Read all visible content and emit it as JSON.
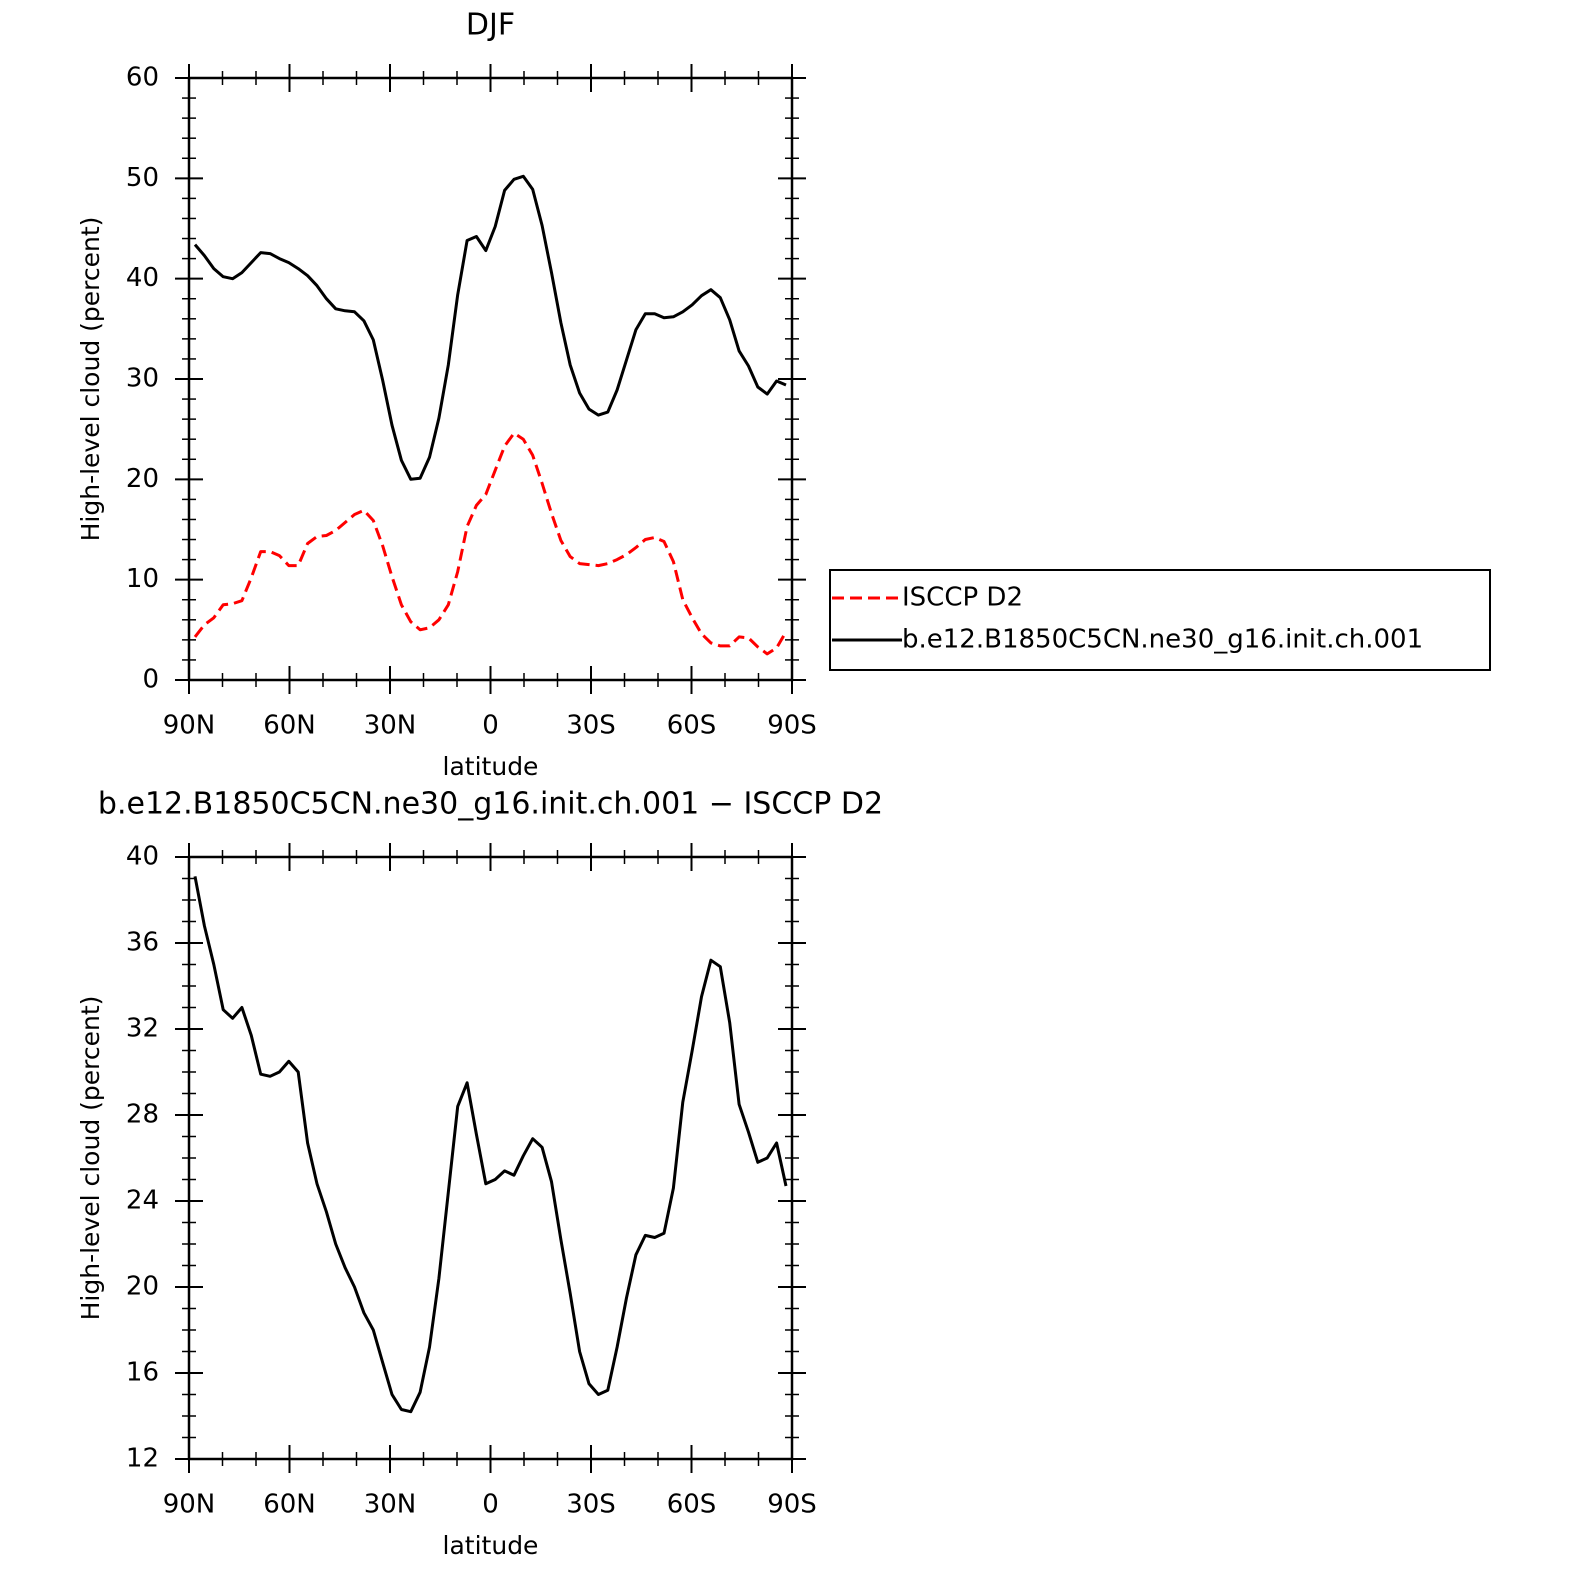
{
  "chart_data": [
    {
      "type": "line",
      "title": "DJF",
      "xlabel": "latitude",
      "ylabel": "High-level cloud (percent)",
      "x": [
        88.2,
        85.4,
        82.6,
        79.8,
        77,
        74.2,
        71.4,
        68.6,
        65.8,
        63,
        60.2,
        57.4,
        54.6,
        51.8,
        49,
        46.2,
        43.4,
        40.6,
        37.8,
        35,
        32.2,
        29.4,
        26.6,
        23.8,
        21,
        18.2,
        15.4,
        12.6,
        9.8,
        7,
        4.2,
        1.4,
        -1.4,
        -4.2,
        -7,
        -9.8,
        -12.6,
        -15.4,
        -18.2,
        -21,
        -23.8,
        -26.6,
        -29.4,
        -32.2,
        -35,
        -37.8,
        -40.6,
        -43.4,
        -46.2,
        -49,
        -51.8,
        -54.6,
        -57.4,
        -60.2,
        -63,
        -65.8,
        -68.6,
        -71.4,
        -74.2,
        -77,
        -79.8,
        -82.6,
        -85.4,
        -88.2
      ],
      "series": [
        {
          "name": "ISCCP D2",
          "color": "#ff0000",
          "dashed": true,
          "values": [
            4.3,
            5.5,
            6.2,
            7.5,
            7.6,
            7.9,
            10.2,
            12.8,
            12.8,
            12.4,
            11.4,
            11.4,
            13.6,
            14.3,
            14.4,
            14.9,
            15.7,
            16.5,
            16.9,
            15.9,
            13.4,
            10.3,
            7.5,
            5.8,
            5.0,
            5.2,
            6.0,
            7.5,
            10.8,
            15.3,
            17.4,
            18.5,
            20.9,
            23.3,
            24.6,
            24.0,
            22.4,
            19.6,
            16.6,
            13.9,
            12.3,
            11.6,
            11.5,
            11.4,
            11.6,
            12.0,
            12.5,
            13.2,
            14.0,
            14.2,
            13.8,
            11.8,
            8.0,
            6.2,
            4.6,
            3.7,
            3.4,
            3.4,
            4.3,
            4.2,
            3.3,
            2.6,
            3.2,
            4.8
          ]
        },
        {
          "name": "b.e12.B1850C5CN.ne30_g16.init.ch.001",
          "color": "#000000",
          "dashed": false,
          "values": [
            43.4,
            42.3,
            41.0,
            40.2,
            40.0,
            40.6,
            41.6,
            42.6,
            42.5,
            42.0,
            41.6,
            41.0,
            40.3,
            39.3,
            38.0,
            37.0,
            36.8,
            36.7,
            35.8,
            33.9,
            29.9,
            25.4,
            21.9,
            20.0,
            20.1,
            22.2,
            26.1,
            31.4,
            38.4,
            43.8,
            44.2,
            42.8,
            45.2,
            48.8,
            49.9,
            50.2,
            48.9,
            45.3,
            40.6,
            35.6,
            31.4,
            28.6,
            27.0,
            26.4,
            26.7,
            28.9,
            31.9,
            34.9,
            36.5,
            36.5,
            36.1,
            36.2,
            36.7,
            37.4,
            38.3,
            38.9,
            38.1,
            35.9,
            32.8,
            31.3,
            29.2,
            28.5,
            29.8,
            29.4
          ]
        }
      ],
      "xlim": [
        90,
        -90
      ],
      "xticks": [
        {
          "value": 90,
          "label": "90N"
        },
        {
          "value": 60,
          "label": "60N"
        },
        {
          "value": 30,
          "label": "30N"
        },
        0,
        {
          "value": -30,
          "label": "30S"
        },
        {
          "value": -60,
          "label": "60S"
        },
        {
          "value": -90,
          "label": "90S"
        }
      ],
      "xminorticks": [
        80,
        70,
        50,
        40,
        20,
        10,
        -10,
        -20,
        -40,
        -50,
        -70,
        -80
      ],
      "ylim": [
        0,
        60
      ],
      "yticks": [
        0,
        10,
        20,
        30,
        40,
        50,
        60
      ],
      "yminorticks": [
        2,
        4,
        6,
        8,
        12,
        14,
        16,
        18,
        22,
        24,
        26,
        28,
        32,
        34,
        36,
        38,
        42,
        44,
        46,
        48,
        52,
        54,
        56,
        58
      ],
      "legend": "right"
    },
    {
      "type": "line",
      "title": "b.e12.B1850C5CN.ne30_g16.init.ch.001 − ISCCP D2",
      "xlabel": "latitude",
      "ylabel": "High-level cloud (percent)",
      "x": [
        88.2,
        85.4,
        82.6,
        79.8,
        77,
        74.2,
        71.4,
        68.6,
        65.8,
        63,
        60.2,
        57.4,
        54.6,
        51.8,
        49,
        46.2,
        43.4,
        40.6,
        37.8,
        35,
        32.2,
        29.4,
        26.6,
        23.8,
        21,
        18.2,
        15.4,
        12.6,
        9.8,
        7,
        4.2,
        1.4,
        -1.4,
        -4.2,
        -7,
        -9.8,
        -12.6,
        -15.4,
        -18.2,
        -21,
        -23.8,
        -26.6,
        -29.4,
        -32.2,
        -35,
        -37.8,
        -40.6,
        -43.4,
        -46.2,
        -49,
        -51.8,
        -54.6,
        -57.4,
        -60.2,
        -63,
        -65.8,
        -68.6,
        -71.4,
        -74.2,
        -77,
        -79.8,
        -82.6,
        -85.4,
        -88.2
      ],
      "series": [
        {
          "color": "#000000",
          "dashed": false,
          "values": [
            39.1,
            36.8,
            35.0,
            32.9,
            32.5,
            33.0,
            31.7,
            29.9,
            29.8,
            30.0,
            30.5,
            30.0,
            26.7,
            24.8,
            23.5,
            22.0,
            20.9,
            20.0,
            18.8,
            18.0,
            16.5,
            15.0,
            14.3,
            14.2,
            15.1,
            17.2,
            20.4,
            24.4,
            28.4,
            29.5,
            27.1,
            24.8,
            25.0,
            25.4,
            25.2,
            26.1,
            26.9,
            26.5,
            24.9,
            22.2,
            19.7,
            17.0,
            15.5,
            15.0,
            15.2,
            17.2,
            19.5,
            21.5,
            22.4,
            22.3,
            22.5,
            24.6,
            28.6,
            31.0,
            33.5,
            35.2,
            34.9,
            32.3,
            28.5,
            27.2,
            25.8,
            26.0,
            26.7,
            24.7
          ]
        }
      ],
      "xlim": [
        90,
        -90
      ],
      "xticks": [
        {
          "value": 90,
          "label": "90N"
        },
        {
          "value": 60,
          "label": "60N"
        },
        {
          "value": 30,
          "label": "30N"
        },
        0,
        {
          "value": -30,
          "label": "30S"
        },
        {
          "value": -60,
          "label": "60S"
        },
        {
          "value": -90,
          "label": "90S"
        }
      ],
      "xminorticks": [
        80,
        70,
        50,
        40,
        20,
        10,
        -10,
        -20,
        -40,
        -50,
        -70,
        -80
      ],
      "ylim": [
        12,
        40
      ],
      "yticks": [
        12,
        16,
        20,
        24,
        28,
        32,
        36,
        40
      ],
      "yminorticks": [
        13,
        14,
        15,
        17,
        18,
        19,
        21,
        22,
        23,
        25,
        26,
        27,
        29,
        30,
        31,
        33,
        34,
        35,
        37,
        38,
        39
      ]
    }
  ]
}
